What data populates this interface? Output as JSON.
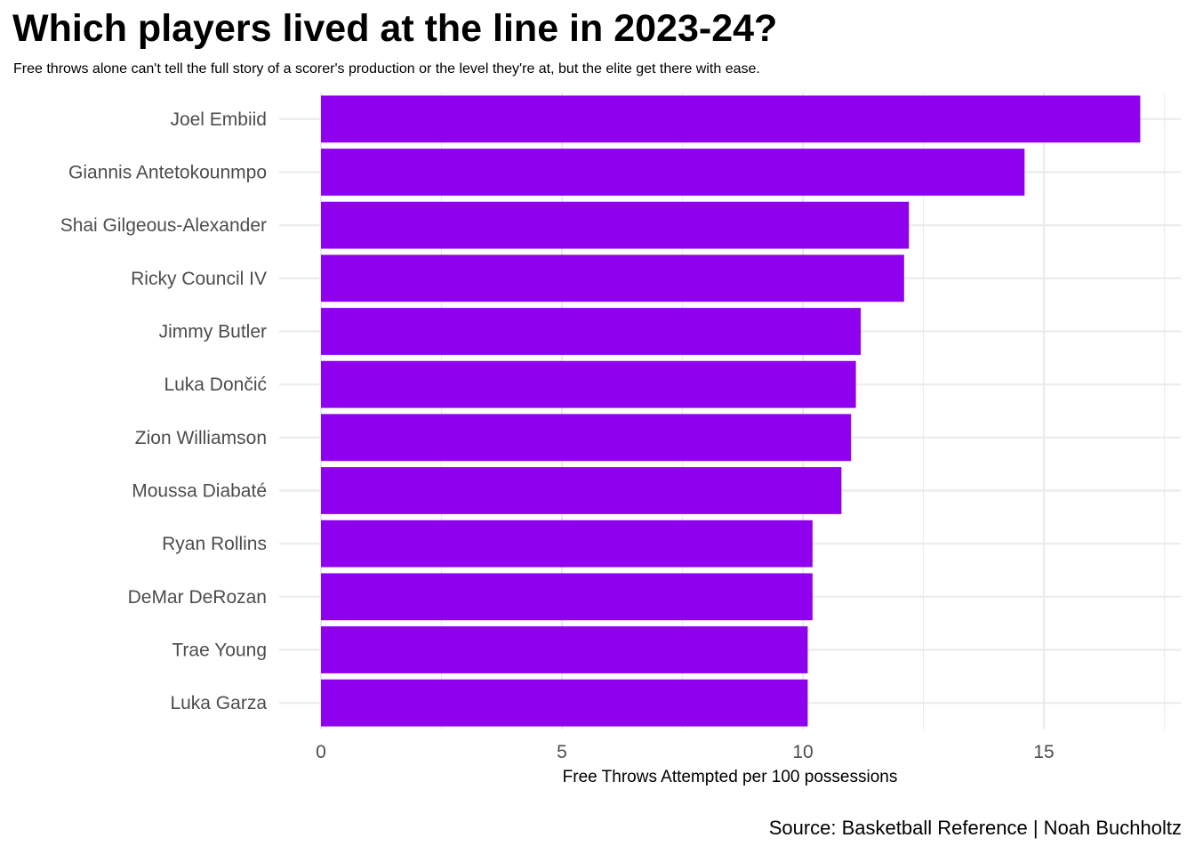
{
  "title": "Which players lived at the line in 2023-24?",
  "subtitle": "Free throws alone can't tell the full story of a scorer's production or the level they're at, but the elite get there with ease.",
  "caption": "Source: Basketball Reference | Noah Buchholtz",
  "chart_data": {
    "type": "bar",
    "orientation": "horizontal",
    "categories": [
      "Joel Embiid",
      "Giannis Antetokounmpo",
      "Shai Gilgeous-Alexander",
      "Ricky Council IV",
      "Jimmy Butler",
      "Luka Dončić",
      "Zion Williamson",
      "Moussa Diabaté",
      "Ryan Rollins",
      "DeMar DeRozan",
      "Trae Young",
      "Luka Garza"
    ],
    "values": [
      17.0,
      14.6,
      12.2,
      12.1,
      11.2,
      11.1,
      11.0,
      10.8,
      10.2,
      10.2,
      10.1,
      10.1
    ],
    "xlabel": "Free Throws Attempted per 100 possessions",
    "ylabel": "",
    "xlim": [
      0,
      17.5
    ],
    "xticks": [
      0,
      5,
      10,
      15
    ],
    "grid": true,
    "bar_color": "#8f00ee",
    "grid_color": "#ebebeb"
  }
}
